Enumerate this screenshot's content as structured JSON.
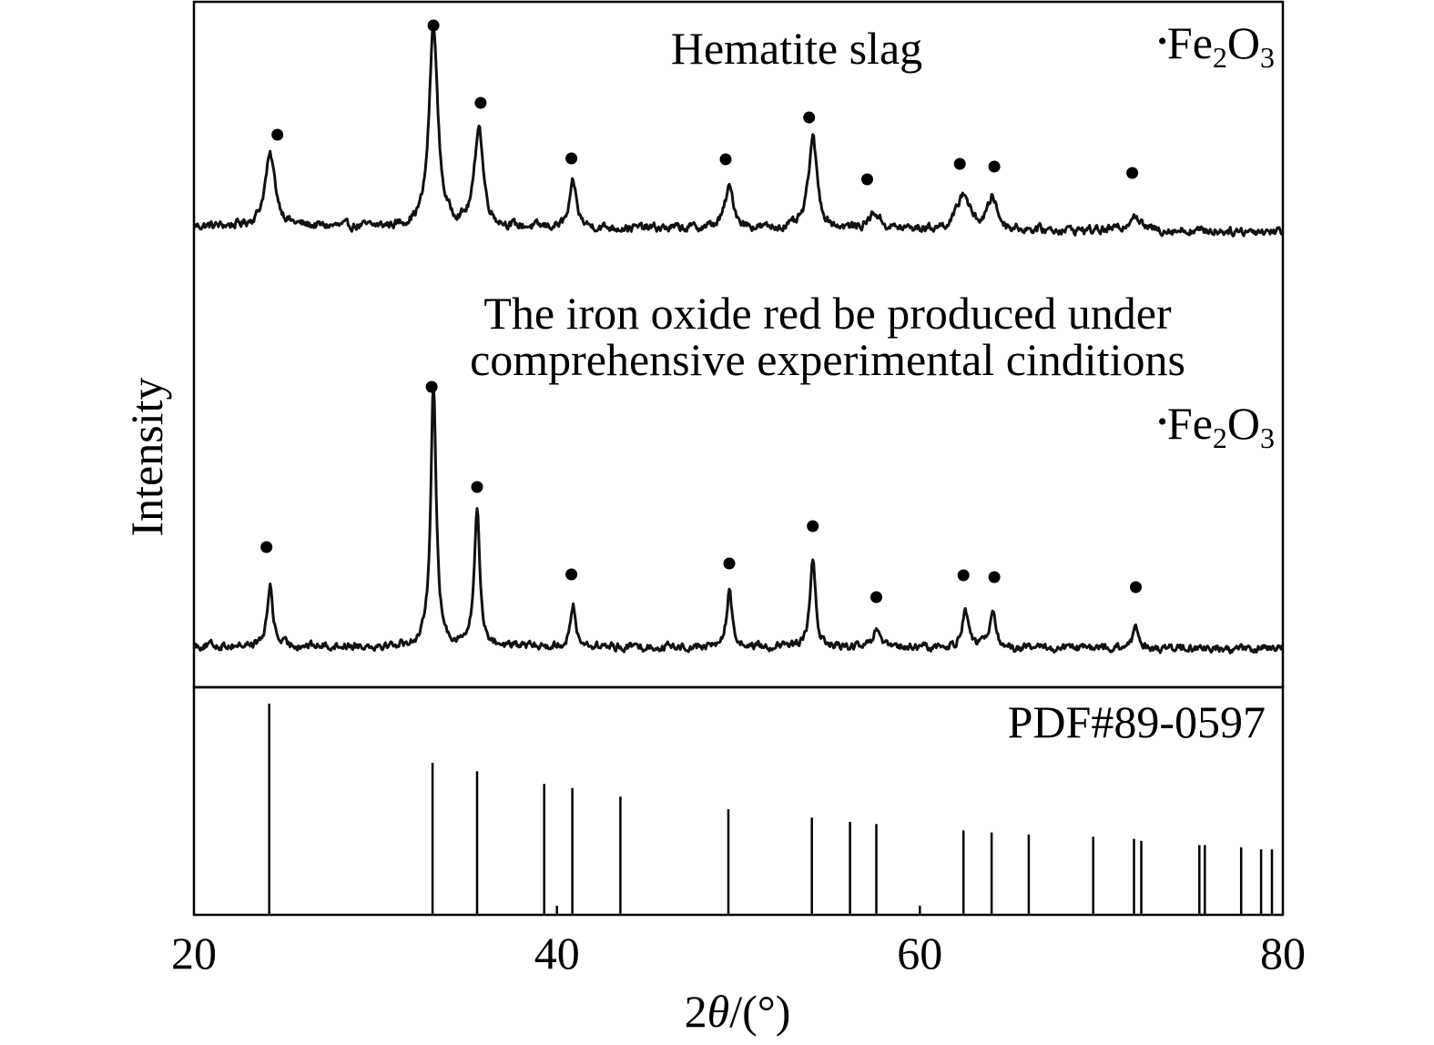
{
  "chart_data": {
    "type": "line",
    "xlabel_prefix": "2",
    "xlabel_theta": "θ",
    "xlabel_suffix": "/(°)",
    "ylabel": "Intensity",
    "xlim": [
      20,
      80
    ],
    "x_ticks": [
      20,
      40,
      60,
      80
    ],
    "x_tick_labels": [
      "20",
      "40",
      "60",
      "80"
    ],
    "grid": false,
    "peak_marker": "•",
    "series": [
      {
        "name": "Hematite slag",
        "label": "Hematite slag",
        "legend_base": "Fe",
        "legend_sub1": "2",
        "legend_mid": "O",
        "legend_sub2": "3",
        "baseline": 0.12,
        "noise": 0.035,
        "peaks": [
          {
            "x": 24.2,
            "h": 0.35,
            "w": 0.35
          },
          {
            "x": 33.2,
            "h": 1.0,
            "w": 0.28
          },
          {
            "x": 35.7,
            "h": 0.5,
            "w": 0.28
          },
          {
            "x": 40.9,
            "h": 0.22,
            "w": 0.22
          },
          {
            "x": 49.5,
            "h": 0.2,
            "w": 0.3
          },
          {
            "x": 54.1,
            "h": 0.45,
            "w": 0.28
          },
          {
            "x": 57.5,
            "h": 0.08,
            "w": 0.35
          },
          {
            "x": 62.4,
            "h": 0.18,
            "w": 0.4
          },
          {
            "x": 64.0,
            "h": 0.16,
            "w": 0.3
          },
          {
            "x": 71.8,
            "h": 0.08,
            "w": 0.35
          }
        ],
        "marker_positions": [
          24.6,
          33.2,
          35.8,
          40.8,
          49.3,
          53.9,
          57.1,
          62.2,
          64.1,
          71.7
        ]
      },
      {
        "name": "The iron oxide red be produced under comprehensive experimental cinditions",
        "label_line1": "The iron oxide red be produced under",
        "label_line2": "comprehensive experimental cinditions",
        "legend_base": "Fe",
        "legend_sub1": "2",
        "legend_mid": "O",
        "legend_sub2": "3",
        "baseline": 0.06,
        "noise": 0.025,
        "peaks": [
          {
            "x": 24.2,
            "h": 0.23,
            "w": 0.18
          },
          {
            "x": 33.2,
            "h": 1.0,
            "w": 0.18
          },
          {
            "x": 35.6,
            "h": 0.52,
            "w": 0.18
          },
          {
            "x": 40.9,
            "h": 0.15,
            "w": 0.18
          },
          {
            "x": 49.5,
            "h": 0.21,
            "w": 0.18
          },
          {
            "x": 54.1,
            "h": 0.33,
            "w": 0.18
          },
          {
            "x": 57.6,
            "h": 0.07,
            "w": 0.18
          },
          {
            "x": 62.5,
            "h": 0.15,
            "w": 0.2
          },
          {
            "x": 64.0,
            "h": 0.15,
            "w": 0.18
          },
          {
            "x": 71.9,
            "h": 0.07,
            "w": 0.2
          }
        ],
        "marker_positions": [
          24.0,
          33.1,
          35.6,
          40.8,
          49.5,
          54.1,
          57.6,
          62.4,
          64.1,
          71.9
        ]
      }
    ],
    "reference": {
      "label": "PDF#89-0597",
      "type": "stick",
      "sticks": [
        {
          "x": 24.15,
          "i": 100
        },
        {
          "x": 33.15,
          "i": 72
        },
        {
          "x": 35.6,
          "i": 68
        },
        {
          "x": 39.3,
          "i": 62
        },
        {
          "x": 40.85,
          "i": 60
        },
        {
          "x": 43.5,
          "i": 56
        },
        {
          "x": 49.45,
          "i": 50
        },
        {
          "x": 54.05,
          "i": 46
        },
        {
          "x": 56.15,
          "i": 44
        },
        {
          "x": 57.6,
          "i": 43
        },
        {
          "x": 62.4,
          "i": 40
        },
        {
          "x": 63.95,
          "i": 39
        },
        {
          "x": 66.0,
          "i": 38
        },
        {
          "x": 69.55,
          "i": 37
        },
        {
          "x": 71.8,
          "i": 36
        },
        {
          "x": 72.2,
          "i": 35
        },
        {
          "x": 75.4,
          "i": 33
        },
        {
          "x": 75.7,
          "i": 33
        },
        {
          "x": 77.7,
          "i": 32
        },
        {
          "x": 78.8,
          "i": 31
        },
        {
          "x": 79.4,
          "i": 31
        }
      ]
    }
  }
}
